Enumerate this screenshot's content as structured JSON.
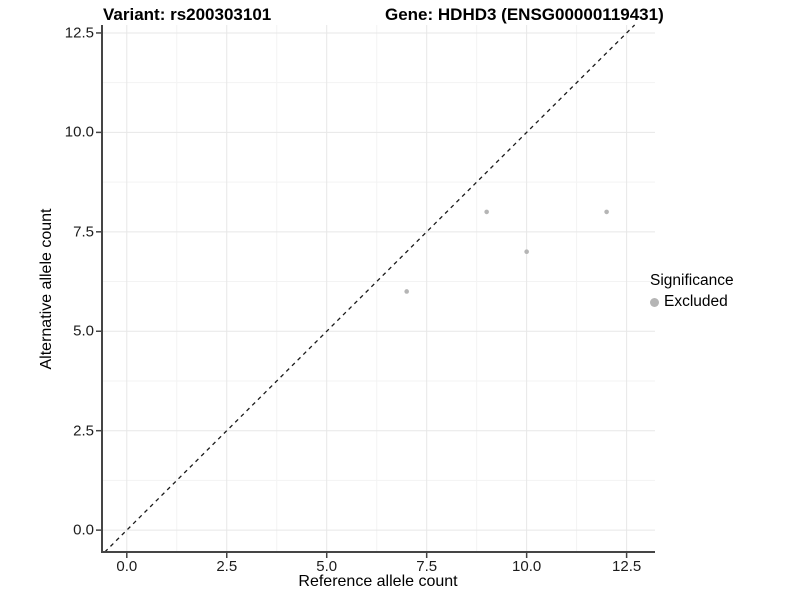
{
  "chart_data": {
    "type": "scatter",
    "title_left": "Variant: rs200303101",
    "title_right": "Gene: HDHD3 (ENSG00000119431)",
    "xlabel": "Reference allele count",
    "ylabel": "Alternative allele count",
    "x_ticks": [
      0.0,
      2.5,
      5.0,
      7.5,
      10.0,
      12.5
    ],
    "y_ticks": [
      0.0,
      2.5,
      5.0,
      7.5,
      10.0,
      12.5
    ],
    "tick_decimals": 1,
    "xlim": [
      -0.62,
      13.21
    ],
    "ylim": [
      -0.55,
      12.7
    ],
    "grid": {
      "major": true,
      "minor": true,
      "major_color": "#e7e7e7",
      "minor_color": "#f3f3f3"
    },
    "series": [
      {
        "name": "Excluded",
        "color": "#b5b5b5",
        "points": [
          {
            "x": 7,
            "y": 6
          },
          {
            "x": 9,
            "y": 8
          },
          {
            "x": 10,
            "y": 7
          },
          {
            "x": 12,
            "y": 8
          }
        ]
      }
    ],
    "reference_line": {
      "equation": "y = x",
      "style": "dashed",
      "color": "#1a1a1a"
    },
    "legend": {
      "title": "Significance",
      "position": "right",
      "entries": [
        {
          "label": "Excluded",
          "marker": "circle",
          "color": "#b5b5b5"
        }
      ]
    },
    "axis_color": "#454545",
    "point_radius": 2.3,
    "legend_marker_radius": 4.5
  }
}
